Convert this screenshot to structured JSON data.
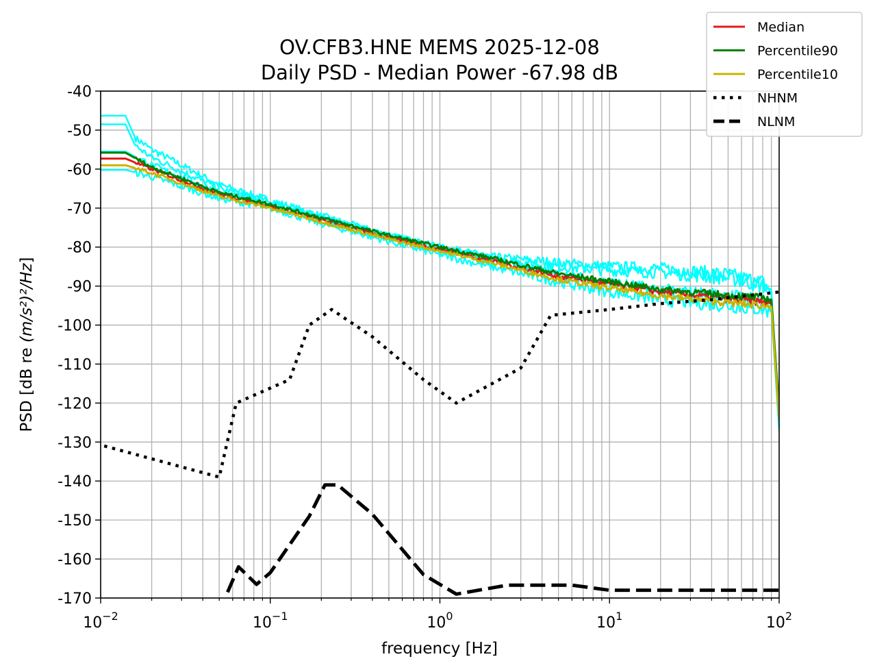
{
  "chart_data": {
    "type": "line",
    "title": "OV.CFB3.HNE MEMS 2025-12-08",
    "subtitle": "Daily PSD - Median Power -67.98 dB",
    "xlabel": "frequency [Hz]",
    "ylabel_prefix": "PSD [dB re ",
    "ylabel_math": "(m/s²)²/Hz",
    "ylabel_suffix": "]",
    "xscale": "log",
    "xlim": [
      0.01,
      100
    ],
    "ylim": [
      -170,
      -40
    ],
    "grid": true,
    "legend_position": "upper-right",
    "x_ticks": [
      {
        "value": 0.01,
        "base": "10",
        "exp": "−2"
      },
      {
        "value": 0.1,
        "base": "10",
        "exp": "−1"
      },
      {
        "value": 1,
        "base": "10",
        "exp": "0"
      },
      {
        "value": 10,
        "base": "10",
        "exp": "1"
      },
      {
        "value": 100,
        "base": "10",
        "exp": "2"
      }
    ],
    "y_ticks": [
      {
        "value": -40,
        "label": "-40"
      },
      {
        "value": -50,
        "label": "-50"
      },
      {
        "value": -60,
        "label": "-60"
      },
      {
        "value": -70,
        "label": "-70"
      },
      {
        "value": -80,
        "label": "-80"
      },
      {
        "value": -90,
        "label": "-90"
      },
      {
        "value": -100,
        "label": "-100"
      },
      {
        "value": -110,
        "label": "-110"
      },
      {
        "value": -120,
        "label": "-120"
      },
      {
        "value": -130,
        "label": "-130"
      },
      {
        "value": -140,
        "label": "-140"
      },
      {
        "value": -150,
        "label": "-150"
      },
      {
        "value": -160,
        "label": "-160"
      },
      {
        "value": -170,
        "label": "-170"
      }
    ],
    "hourly_psds": {
      "color": "#00ffff",
      "traces": [
        {
          "x": [
            0.01,
            0.014,
            0.016,
            0.02,
            0.05,
            0.1,
            0.2,
            0.5,
            1,
            2,
            5,
            10,
            20,
            50,
            80,
            90,
            100
          ],
          "y": [
            -46.3,
            -46.3,
            -52,
            -55,
            -64,
            -68,
            -72,
            -77,
            -80,
            -82.5,
            -84,
            -85,
            -85.5,
            -87,
            -89,
            -91,
            -126
          ]
        },
        {
          "x": [
            0.01,
            0.014,
            0.016,
            0.02,
            0.05,
            0.1,
            0.2,
            0.5,
            1,
            2,
            5,
            10,
            20,
            50,
            80,
            90,
            100
          ],
          "y": [
            -48.5,
            -48.5,
            -54,
            -57,
            -65,
            -68.5,
            -72.5,
            -77.5,
            -80.5,
            -83,
            -85,
            -86,
            -86.5,
            -88,
            -90,
            -92,
            -125
          ]
        },
        {
          "x": [
            0.01,
            0.014,
            0.02,
            0.05,
            0.1,
            0.2,
            0.5,
            1,
            2,
            5,
            10,
            20,
            50,
            80,
            90,
            100
          ],
          "y": [
            -60.2,
            -60.2,
            -62,
            -67.5,
            -70,
            -74,
            -78.5,
            -82,
            -85,
            -89,
            -91.5,
            -93.5,
            -95,
            -96,
            -96.5,
            -127
          ]
        },
        {
          "x": [
            0.01,
            0.014,
            0.02,
            0.05,
            0.1,
            0.2,
            0.5,
            1,
            2,
            5,
            10,
            20,
            50,
            80,
            90,
            100
          ],
          "y": [
            -55.5,
            -55.5,
            -59,
            -66,
            -69,
            -72.5,
            -77,
            -80,
            -83,
            -87,
            -89,
            -91,
            -92.5,
            -93.5,
            -94,
            -124
          ]
        }
      ]
    },
    "series": [
      {
        "name": "Median",
        "color": "#e41a1c",
        "style": "solid",
        "x": [
          0.01,
          0.014,
          0.02,
          0.05,
          0.1,
          0.2,
          0.5,
          1,
          2,
          5,
          10,
          20,
          50,
          80,
          90,
          100
        ],
        "y": [
          -57.3,
          -57.3,
          -60,
          -66.5,
          -69.5,
          -73,
          -77.5,
          -80.5,
          -83.5,
          -87.5,
          -89.5,
          -91.5,
          -93.3,
          -94,
          -94.5,
          -124
        ]
      },
      {
        "name": "Percentile90",
        "color": "#008000",
        "style": "solid",
        "x": [
          0.01,
          0.014,
          0.02,
          0.05,
          0.1,
          0.2,
          0.5,
          1,
          2,
          5,
          10,
          20,
          50,
          80,
          90,
          100
        ],
        "y": [
          -55.8,
          -55.8,
          -59.5,
          -66,
          -69,
          -72.5,
          -77,
          -80,
          -82.8,
          -86.8,
          -88.8,
          -90.8,
          -92.3,
          -93,
          -93.5,
          -122
        ]
      },
      {
        "name": "Percentile10",
        "color": "#c8b400",
        "style": "solid",
        "x": [
          0.01,
          0.014,
          0.02,
          0.05,
          0.1,
          0.2,
          0.5,
          1,
          2,
          5,
          10,
          20,
          50,
          80,
          90,
          100
        ],
        "y": [
          -59,
          -59,
          -61,
          -67,
          -70,
          -73.5,
          -78,
          -81,
          -84,
          -88.3,
          -90.5,
          -92.5,
          -94.3,
          -95,
          -95.3,
          -124
        ]
      },
      {
        "name": "NHNM",
        "color": "#000000",
        "style": "dotted",
        "x": [
          0.0105,
          0.05,
          0.063,
          0.13,
          0.17,
          0.23,
          0.4,
          0.8,
          1.25,
          3.0,
          4.5,
          10,
          20,
          40,
          100
        ],
        "y": [
          -131,
          -139,
          -120,
          -114,
          -100,
          -96,
          -103,
          -114,
          -120,
          -111,
          -97.5,
          -96,
          -94.5,
          -93.5,
          -91.5
        ]
      },
      {
        "name": "NLNM",
        "color": "#000000",
        "style": "dashed",
        "x": [
          0.056,
          0.065,
          0.083,
          0.1,
          0.17,
          0.21,
          0.25,
          0.4,
          0.8,
          1.25,
          2.5,
          6,
          10,
          100
        ],
        "y": [
          -168.5,
          -162,
          -166.5,
          -163.5,
          -149,
          -141,
          -141,
          -148.5,
          -164,
          -169,
          -166.7,
          -166.7,
          -168,
          -168
        ]
      }
    ]
  }
}
